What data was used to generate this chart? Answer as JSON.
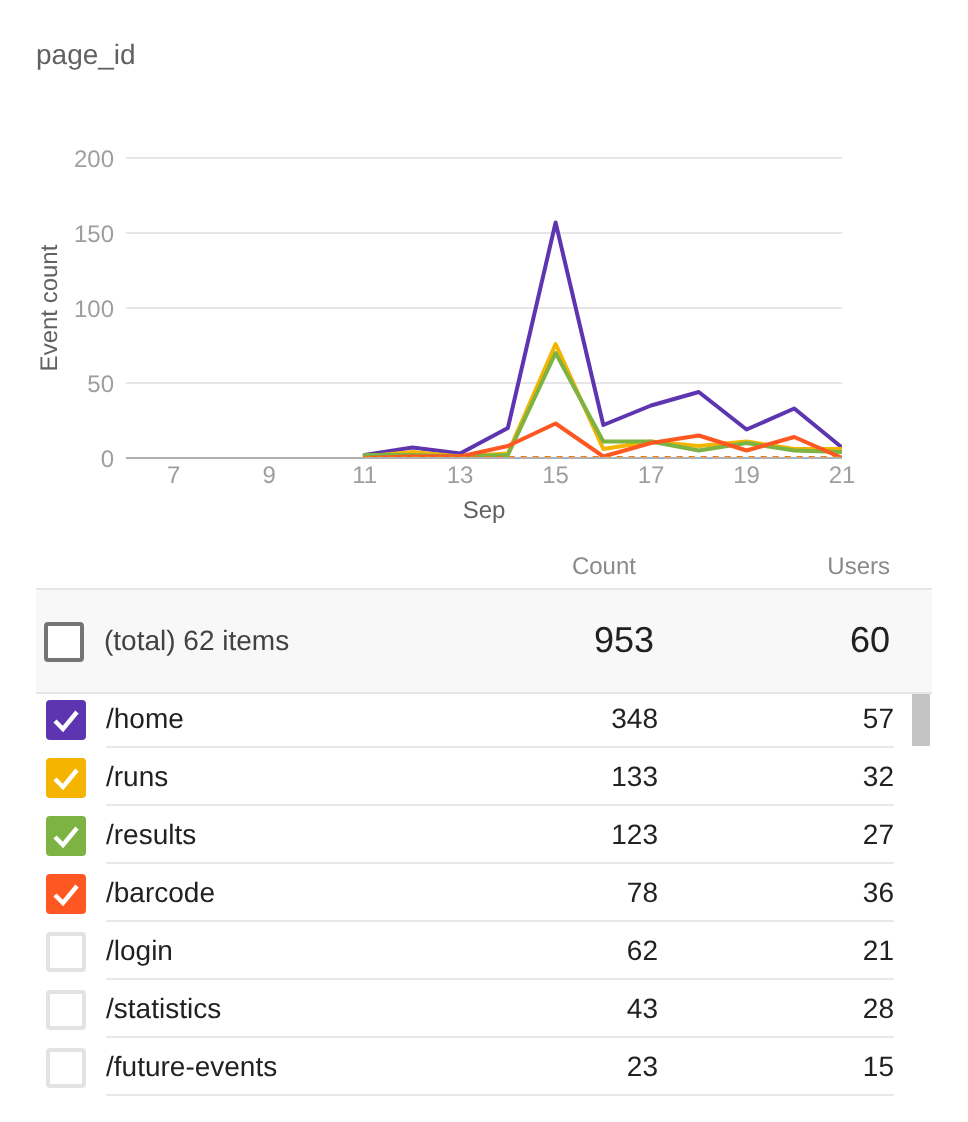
{
  "chart_data": [
    {
      "type": "line",
      "title": "page_id",
      "xlabel": "Sep",
      "ylabel": "Event count",
      "x": [
        11,
        12,
        13,
        14,
        15,
        16,
        17,
        18,
        19,
        20,
        21
      ],
      "series": [
        {
          "color": "#5e35b1",
          "values": [
            2,
            7,
            3,
            20,
            157,
            22,
            35,
            44,
            19,
            33,
            7
          ]
        },
        {
          "color": "#f4b400",
          "values": [
            1,
            4,
            1,
            3,
            76,
            6,
            11,
            8,
            11,
            6,
            6
          ]
        },
        {
          "color": "#7cb342",
          "values": [
            2,
            2,
            1,
            2,
            70,
            11,
            11,
            5,
            10,
            5,
            4
          ]
        },
        {
          "color": "#ff5722",
          "values": [
            0,
            1,
            1,
            8,
            23,
            1,
            10,
            15,
            5,
            14,
            0
          ]
        },
        {
          "color": "#f57c00",
          "line_style": "dotted",
          "values": [
            0,
            0,
            0,
            0,
            0,
            0,
            0,
            0,
            0,
            0,
            0
          ]
        }
      ],
      "xlim": [
        6,
        21
      ],
      "xticks": [
        7,
        9,
        11,
        13,
        15,
        17,
        19,
        21
      ],
      "ylim": [
        0,
        200
      ],
      "yticks": [
        0,
        50,
        100,
        150,
        200
      ],
      "grid": "y",
      "marker": "none",
      "line_style": "solid"
    },
    {
      "type": "other",
      "categories": [
        "(total) 62 items",
        "/home",
        "/runs",
        "/results",
        "/barcode",
        "/login",
        "/statistics",
        "/future-events"
      ],
      "series": [
        {
          "name": "Count",
          "values": [
            953,
            348,
            133,
            123,
            78,
            62,
            43,
            23
          ]
        },
        {
          "name": "Users",
          "values": [
            60,
            57,
            32,
            27,
            36,
            21,
            28,
            15
          ]
        }
      ],
      "colors": [
        null,
        "#5e35b1",
        "#f4b400",
        "#7cb342",
        "#ff5722",
        null,
        null,
        null
      ],
      "data_labels": true
    }
  ]
}
